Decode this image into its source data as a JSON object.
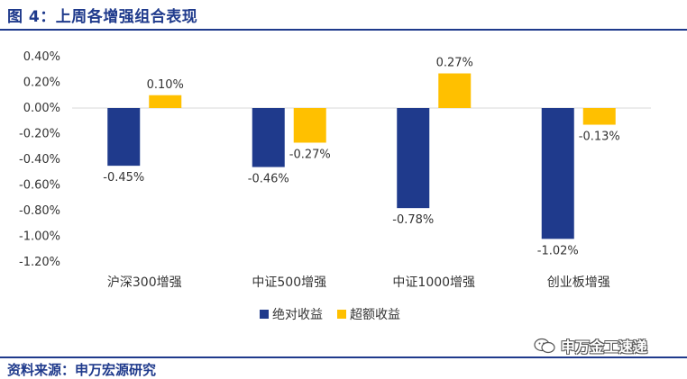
{
  "figure_title": "图 4：上周各增强组合表现",
  "source": "资料来源：申万宏源研究",
  "watermark": "申万金工速递",
  "colors": {
    "series_absolute": "#1f3a8c",
    "series_excess": "#ffc000",
    "title": "#1f3a8c",
    "grid": "#d9d9d9"
  },
  "chart_data": {
    "type": "bar",
    "categories": [
      "沪深300增强",
      "中证500增强",
      "中证1000增强",
      "创业板增强"
    ],
    "series": [
      {
        "name": "绝对收益",
        "values": [
          -0.45,
          -0.46,
          -0.78,
          -1.02
        ],
        "labels": [
          "-0.45%",
          "-0.46%",
          "-0.78%",
          "-1.02%"
        ]
      },
      {
        "name": "超额收益",
        "values": [
          0.1,
          -0.27,
          0.27,
          -0.13
        ],
        "labels": [
          "0.10%",
          "-0.27%",
          "0.27%",
          "-0.13%"
        ]
      }
    ],
    "ylim": [
      -1.2,
      0.4
    ],
    "yticks": [
      0.4,
      0.2,
      0.0,
      -0.2,
      -0.4,
      -0.6,
      -0.8,
      -1.0,
      -1.2
    ],
    "ytick_labels": [
      "0.40%",
      "0.20%",
      "0.00%",
      "-0.20%",
      "-0.40%",
      "-0.60%",
      "-0.80%",
      "-1.00%",
      "-1.20%"
    ],
    "grid": false,
    "legend_position": "bottom"
  }
}
